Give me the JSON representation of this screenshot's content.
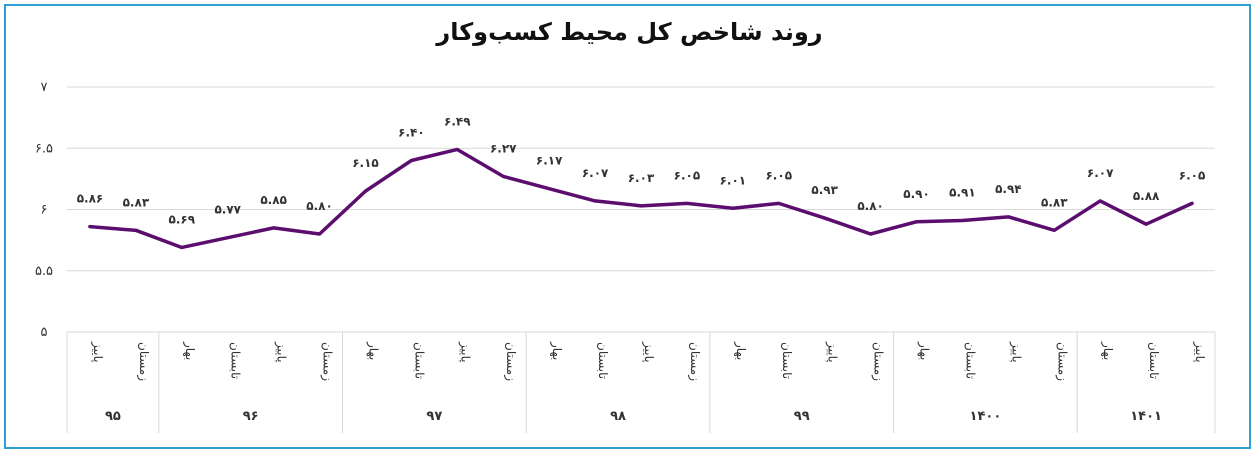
{
  "chart_data": {
    "type": "line",
    "title": "روند شاخص کل محیط کسب‌وکار",
    "xlabel": "",
    "ylabel": "",
    "ylim": [
      5,
      7
    ],
    "y_ticks": [
      "۵",
      "۵.۵",
      "۶",
      "۶.۵",
      "۷"
    ],
    "y_tick_values": [
      5,
      5.5,
      6,
      6.5,
      7
    ],
    "grid": true,
    "line_color": "#5b0e6e",
    "categories": [
      {
        "year": "۹۵",
        "season": "پاییز"
      },
      {
        "year": "۹۵",
        "season": "زمستان"
      },
      {
        "year": "۹۶",
        "season": "بهار"
      },
      {
        "year": "۹۶",
        "season": "تابستان"
      },
      {
        "year": "۹۶",
        "season": "پاییز"
      },
      {
        "year": "۹۶",
        "season": "زمستان"
      },
      {
        "year": "۹۷",
        "season": "بهار"
      },
      {
        "year": "۹۷",
        "season": "تابستان"
      },
      {
        "year": "۹۷",
        "season": "پاییز"
      },
      {
        "year": "۹۷",
        "season": "زمستان"
      },
      {
        "year": "۹۸",
        "season": "بهار"
      },
      {
        "year": "۹۸",
        "season": "تابستان"
      },
      {
        "year": "۹۸",
        "season": "پاییز"
      },
      {
        "year": "۹۸",
        "season": "زمستان"
      },
      {
        "year": "۹۹",
        "season": "بهار"
      },
      {
        "year": "۹۹",
        "season": "تابستان"
      },
      {
        "year": "۹۹",
        "season": "پاییز"
      },
      {
        "year": "۹۹",
        "season": "زمستان"
      },
      {
        "year": "۱۴۰۰",
        "season": "بهار"
      },
      {
        "year": "۱۴۰۰",
        "season": "تابستان"
      },
      {
        "year": "۱۴۰۰",
        "season": "پاییز"
      },
      {
        "year": "۱۴۰۰",
        "season": "زمستان"
      },
      {
        "year": "۱۴۰۱",
        "season": "بهار"
      },
      {
        "year": "۱۴۰۱",
        "season": "تابستان"
      },
      {
        "year": "۱۴۰۱",
        "season": "پاییز"
      }
    ],
    "years": [
      "۹۵",
      "۹۶",
      "۹۷",
      "۹۸",
      "۹۹",
      "۱۴۰۰",
      "۱۴۰۱"
    ],
    "values": [
      5.86,
      5.83,
      5.69,
      5.77,
      5.85,
      5.8,
      6.15,
      6.4,
      6.49,
      6.27,
      6.17,
      6.07,
      6.03,
      6.05,
      6.01,
      6.05,
      5.93,
      5.8,
      5.9,
      5.91,
      5.94,
      5.83,
      6.07,
      5.88,
      6.05
    ],
    "value_labels": [
      "۵.۸۶",
      "۵.۸۳",
      "۵.۶۹",
      "۵.۷۷",
      "۵.۸۵",
      "۵.۸۰",
      "۶.۱۵",
      "۶.۴۰",
      "۶.۴۹",
      "۶.۲۷",
      "۶.۱۷",
      "۶.۰۷",
      "۶.۰۳",
      "۶.۰۵",
      "۶.۰۱",
      "۶.۰۵",
      "۵.۹۳",
      "۵.۸۰",
      "۵.۹۰",
      "۵.۹۱",
      "۵.۹۴",
      "۵.۸۳",
      "۶.۰۷",
      "۵.۸۸",
      "۶.۰۵"
    ]
  }
}
